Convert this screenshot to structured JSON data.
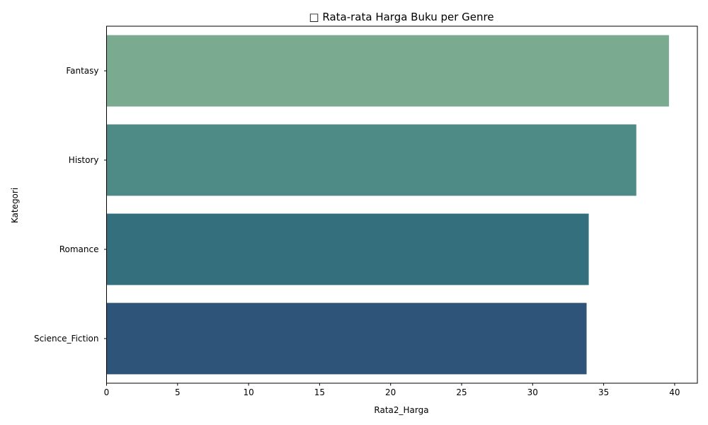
{
  "chart_data": {
    "type": "bar",
    "orientation": "horizontal",
    "title": "□ Rata-rata Harga Buku per Genre",
    "xlabel": "Rata2_Harga",
    "ylabel": "Kategori",
    "categories": [
      "Fantasy",
      "History",
      "Romance",
      "Science_Fiction"
    ],
    "values": [
      39.6,
      37.3,
      33.95,
      33.8
    ],
    "colors": [
      "#7aab91",
      "#4f8b86",
      "#346f7e",
      "#2e5579"
    ],
    "xlim": [
      0,
      41.6
    ],
    "xticks": [
      "0",
      "5",
      "10",
      "15",
      "20",
      "25",
      "30",
      "35",
      "40"
    ],
    "grid": false,
    "legend": "none"
  }
}
